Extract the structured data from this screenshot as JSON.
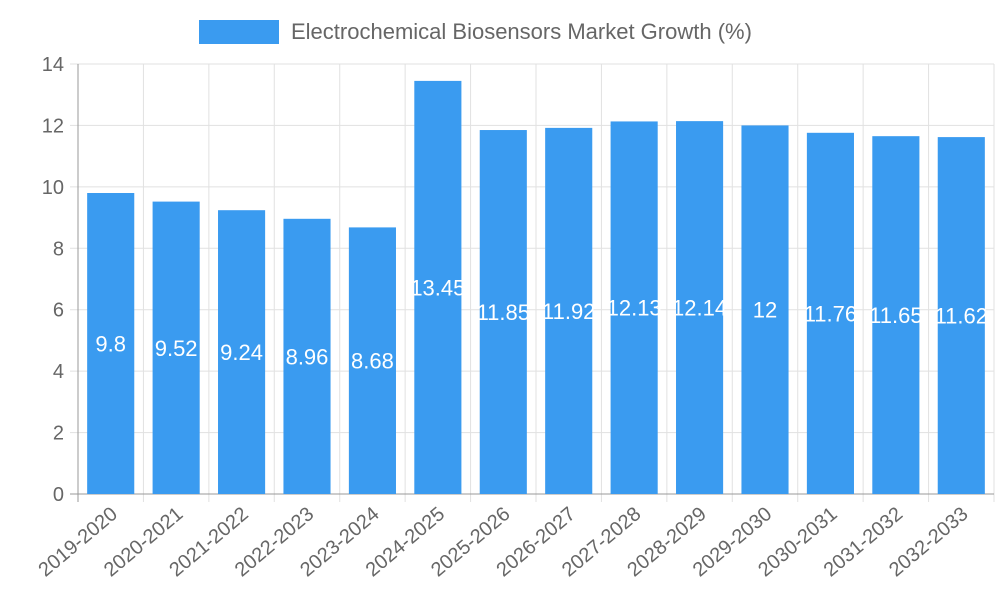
{
  "chart_data": {
    "type": "bar",
    "title": "",
    "xlabel": "",
    "ylabel": "",
    "categories": [
      "2019-2020",
      "2020-2021",
      "2021-2022",
      "2022-2023",
      "2023-2024",
      "2024-2025",
      "2025-2026",
      "2026-2027",
      "2027-2028",
      "2028-2029",
      "2029-2030",
      "2030-2031",
      "2031-2032",
      "2032-2033"
    ],
    "series": [
      {
        "name": "Electrochemical Biosensors Market Growth (%)",
        "values": [
          9.8,
          9.52,
          9.24,
          8.96,
          8.68,
          13.45,
          11.85,
          11.92,
          12.13,
          12.14,
          12,
          11.76,
          11.65,
          11.62
        ],
        "color": "#3a9bf0"
      }
    ],
    "ylim": [
      0,
      14
    ],
    "yticks": [
      0,
      2,
      4,
      6,
      8,
      10,
      12,
      14
    ],
    "grid": true,
    "legend_position": "top-center",
    "data_labels": true
  }
}
